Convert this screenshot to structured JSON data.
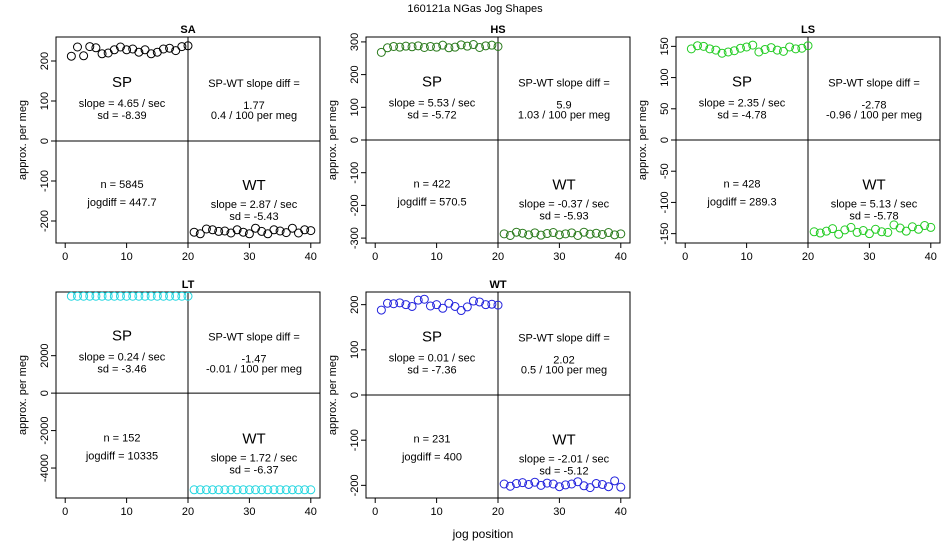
{
  "figure_title": "160121a   NGas Jog Shapes",
  "x_axis_label": "jog position",
  "chart_data": [
    {
      "type": "scatter",
      "title": "SA",
      "ylabel": "approx. per meg",
      "xlabel": "",
      "xlim": [
        -1.5,
        41.5
      ],
      "ylim": [
        -255,
        260
      ],
      "yticks": [
        -200,
        -100,
        0,
        100,
        200
      ],
      "xticks": [
        0,
        10,
        20,
        30,
        40
      ],
      "color": "#000000",
      "x": [
        1,
        2,
        3,
        4,
        5,
        6,
        7,
        8,
        9,
        10,
        11,
        12,
        13,
        14,
        15,
        16,
        17,
        18,
        19,
        20,
        21,
        22,
        23,
        24,
        25,
        26,
        27,
        28,
        29,
        30,
        31,
        32,
        33,
        34,
        35,
        36,
        37,
        38,
        39,
        40
      ],
      "y": [
        212,
        235,
        213,
        236,
        233,
        218,
        220,
        228,
        235,
        228,
        230,
        222,
        228,
        218,
        222,
        230,
        232,
        226,
        236,
        238,
        -228,
        -232,
        -220,
        -222,
        -226,
        -225,
        -230,
        -222,
        -228,
        -232,
        -218,
        -226,
        -232,
        -222,
        -225,
        -229,
        -218,
        -230,
        -222,
        -224
      ],
      "annotations": {
        "sp_label": "SP",
        "sp_slope": "slope = 4.65 / sec",
        "sp_sd": "sd = -8.39",
        "diff_label": "SP-WT slope diff =",
        "diff_value": "1.77",
        "diff_rate": "0.4 / 100 per meg",
        "n": "n = 5845",
        "jogdiff": "jogdiff = 447.7",
        "wt_label": "WT",
        "wt_slope": "slope = 2.87 / sec",
        "wt_sd": "sd = -5.43"
      }
    },
    {
      "type": "scatter",
      "title": "HS",
      "ylabel": "approx. per meg",
      "xlabel": "",
      "xlim": [
        -1.5,
        41.5
      ],
      "ylim": [
        -315,
        315
      ],
      "yticks": [
        -300,
        -200,
        -100,
        0,
        100,
        200,
        300
      ],
      "xticks": [
        0,
        10,
        20,
        30,
        40
      ],
      "color": "#2a7a1c",
      "x": [
        1,
        2,
        3,
        4,
        5,
        6,
        7,
        8,
        9,
        10,
        11,
        12,
        13,
        14,
        15,
        16,
        17,
        18,
        19,
        20,
        21,
        22,
        23,
        24,
        25,
        26,
        27,
        28,
        29,
        30,
        31,
        32,
        33,
        34,
        35,
        36,
        37,
        38,
        39,
        40
      ],
      "y": [
        268,
        282,
        286,
        284,
        287,
        285,
        288,
        283,
        286,
        284,
        290,
        282,
        284,
        291,
        287,
        292,
        283,
        288,
        290,
        286,
        -287,
        -292,
        -282,
        -285,
        -290,
        -284,
        -291,
        -286,
        -283,
        -290,
        -287,
        -284,
        -292,
        -282,
        -288,
        -285,
        -289,
        -283,
        -290,
        -287
      ],
      "annotations": {
        "sp_label": "SP",
        "sp_slope": "slope = 5.53 / sec",
        "sp_sd": "sd = -5.72",
        "diff_label": "SP-WT slope diff =",
        "diff_value": "5.9",
        "diff_rate": "1.03 / 100 per meg",
        "n": "n = 422",
        "jogdiff": "jogdiff = 570.5",
        "wt_label": "WT",
        "wt_slope": "slope = -0.37 / sec",
        "wt_sd": "sd = -5.93"
      }
    },
    {
      "type": "scatter",
      "title": "LS",
      "ylabel": "approx. per meg",
      "xlabel": "",
      "xlim": [
        -1.5,
        41.5
      ],
      "ylim": [
        -165,
        165
      ],
      "yticks": [
        -150,
        -100,
        -50,
        0,
        50,
        100,
        150
      ],
      "xticks": [
        0,
        10,
        20,
        30,
        40
      ],
      "color": "#22cc22",
      "x": [
        1,
        2,
        3,
        4,
        5,
        6,
        7,
        8,
        9,
        10,
        11,
        12,
        13,
        14,
        15,
        16,
        17,
        18,
        19,
        20,
        21,
        22,
        23,
        24,
        25,
        26,
        27,
        28,
        29,
        30,
        31,
        32,
        33,
        34,
        35,
        36,
        37,
        38,
        39,
        40
      ],
      "y": [
        146,
        151,
        150,
        146,
        144,
        139,
        141,
        143,
        147,
        149,
        152,
        141,
        145,
        148,
        144,
        142,
        149,
        146,
        147,
        151,
        -147,
        -149,
        -146,
        -142,
        -151,
        -144,
        -140,
        -148,
        -145,
        -150,
        -143,
        -147,
        -148,
        -136,
        -141,
        -146,
        -139,
        -143,
        -137,
        -140
      ],
      "annotations": {
        "sp_label": "SP",
        "sp_slope": "slope = 2.35 / sec",
        "sp_sd": "sd = -4.78",
        "diff_label": "SP-WT slope diff =",
        "diff_value": "-2.78",
        "diff_rate": "-0.96 / 100 per meg",
        "n": "n = 428",
        "jogdiff": "jogdiff = 289.3",
        "wt_label": "WT",
        "wt_slope": "slope = 5.13 / sec",
        "wt_sd": "sd = -5.78"
      }
    },
    {
      "type": "scatter",
      "title": "LT",
      "ylabel": "approx. per meg",
      "xlabel": "",
      "xlim": [
        -1.5,
        41.5
      ],
      "ylim": [
        -5600,
        5400
      ],
      "yticks": [
        -4000,
        -2000,
        0,
        2000
      ],
      "xticks": [
        0,
        10,
        20,
        30,
        40
      ],
      "color": "#22d6e0",
      "x": [
        1,
        2,
        3,
        4,
        5,
        6,
        7,
        8,
        9,
        10,
        11,
        12,
        13,
        14,
        15,
        16,
        17,
        18,
        19,
        20,
        21,
        22,
        23,
        24,
        25,
        26,
        27,
        28,
        29,
        30,
        31,
        32,
        33,
        34,
        35,
        36,
        37,
        38,
        39,
        40
      ],
      "y": [
        5175,
        5175,
        5175,
        5175,
        5175,
        5175,
        5175,
        5175,
        5175,
        5175,
        5175,
        5175,
        5175,
        5175,
        5175,
        5175,
        5175,
        5175,
        5175,
        5175,
        -5160,
        -5160,
        -5160,
        -5160,
        -5160,
        -5160,
        -5160,
        -5160,
        -5160,
        -5160,
        -5160,
        -5160,
        -5160,
        -5160,
        -5160,
        -5160,
        -5160,
        -5160,
        -5160,
        -5160
      ],
      "annotations": {
        "sp_label": "SP",
        "sp_slope": "slope = 0.24 / sec",
        "sp_sd": "sd = -3.46",
        "diff_label": "SP-WT slope diff =",
        "diff_value": "-1.47",
        "diff_rate": "-0.01 / 100 per meg",
        "n": "n = 152",
        "jogdiff": "jogdiff = 10335",
        "wt_label": "WT",
        "wt_slope": "slope = 1.72 / sec",
        "wt_sd": "sd = -6.37"
      }
    },
    {
      "type": "scatter",
      "title": "WT",
      "ylabel": "approx. per meg",
      "xlabel": "jog position",
      "xlim": [
        -1.5,
        41.5
      ],
      "ylim": [
        -228,
        228
      ],
      "yticks": [
        -200,
        -100,
        0,
        100,
        200
      ],
      "xticks": [
        0,
        10,
        20,
        30,
        40
      ],
      "color": "#2222dd",
      "x": [
        1,
        2,
        3,
        4,
        5,
        6,
        7,
        8,
        9,
        10,
        11,
        12,
        13,
        14,
        15,
        16,
        17,
        18,
        19,
        20,
        21,
        22,
        23,
        24,
        25,
        26,
        27,
        28,
        29,
        30,
        31,
        32,
        33,
        34,
        35,
        36,
        37,
        38,
        39,
        40
      ],
      "y": [
        188,
        203,
        202,
        204,
        200,
        196,
        210,
        212,
        197,
        200,
        192,
        203,
        196,
        187,
        195,
        208,
        206,
        200,
        201,
        199,
        -197,
        -202,
        -196,
        -194,
        -198,
        -193,
        -200,
        -195,
        -197,
        -203,
        -199,
        -197,
        -192,
        -201,
        -205,
        -196,
        -198,
        -203,
        -190,
        -204
      ],
      "annotations": {
        "sp_label": "SP",
        "sp_slope": "slope = 0.01 / sec",
        "sp_sd": "sd = -7.36",
        "diff_label": "SP-WT slope diff =",
        "diff_value": "2.02",
        "diff_rate": "0.5 / 100 per meg",
        "n": "n = 231",
        "jogdiff": "jogdiff = 400",
        "wt_label": "WT",
        "wt_slope": "slope = -2.01 / sec",
        "wt_sd": "sd = -5.12"
      }
    }
  ]
}
